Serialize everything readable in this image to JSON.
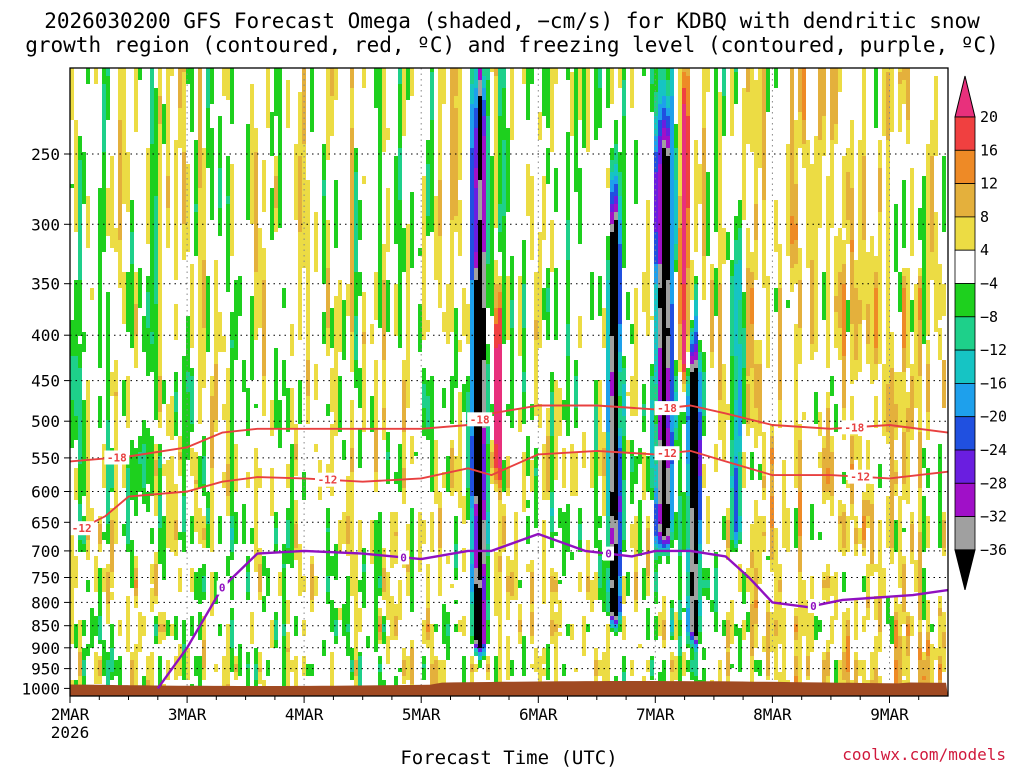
{
  "header": {
    "title_line1": "2026030200 GFS Forecast Omega (shaded, −cm/s) for KDBQ with dendritic snow",
    "title_line2": "growth region (contoured, red, ºC) and freezing level (contoured, purple, ºC)"
  },
  "credit": "coolwx.com/models",
  "chart_data": {
    "type": "heatmap",
    "title": "2026030200 GFS Forecast Omega (shaded, −cm/s) for KDBQ with dendritic snow growth region (contoured, red, ºC) and freezing level (contoured, purple, ºC)",
    "xlabel": "Forecast Time (UTC)",
    "ylabel": "",
    "x_ticks": [
      "2MAR",
      "3MAR",
      "4MAR",
      "5MAR",
      "6MAR",
      "7MAR",
      "8MAR",
      "9MAR"
    ],
    "x_tick_day": [
      0,
      1,
      2,
      3,
      4,
      5,
      6,
      7
    ],
    "x_year_label": "2026",
    "xlim_days": [
      0,
      7.5
    ],
    "y_ticks": [
      250,
      300,
      350,
      400,
      450,
      500,
      550,
      600,
      650,
      700,
      750,
      800,
      850,
      900,
      950,
      1000
    ],
    "ylim_hpa": [
      200,
      1020
    ],
    "y_scale": "log-pressure",
    "ground_pressure_hpa": 990,
    "colorbar": {
      "labels": [
        "20",
        "16",
        "12",
        "8",
        "4",
        "−4",
        "−8",
        "−12",
        "−16",
        "−20",
        "−24",
        "−28",
        "−32",
        "−36"
      ],
      "colors": [
        "#e8307c",
        "#f04040",
        "#ee8a26",
        "#e4b03c",
        "#ecdc44",
        "#ffffff",
        "#1ed01e",
        "#1ed08a",
        "#16c4c4",
        "#1ea0ec",
        "#2050e0",
        "#6a1ee0",
        "#a010c8",
        "#a0a0a0",
        "#000000"
      ]
    },
    "omega_features": [
      {
        "day": 3.5,
        "p_top": 250,
        "p_bot": 870,
        "peak": -36,
        "width": 0.06
      },
      {
        "day": 4.65,
        "p_top": 330,
        "p_bot": 810,
        "peak": -36,
        "width": 0.05
      },
      {
        "day": 5.08,
        "p_top": 270,
        "p_bot": 660,
        "peak": -36,
        "width": 0.07
      },
      {
        "day": 5.33,
        "p_top": 460,
        "p_bot": 850,
        "peak": -36,
        "width": 0.05
      },
      {
        "day": 5.7,
        "p_top": 350,
        "p_bot": 650,
        "peak": -16,
        "width": 0.05
      },
      {
        "day": 3.65,
        "p_top": 400,
        "p_bot": 560,
        "peak": 20,
        "width": 0.04
      },
      {
        "day": 5.25,
        "p_top": 250,
        "p_bot": 420,
        "peak": 20,
        "width": 0.04
      }
    ],
    "contours": [
      {
        "name": "-18",
        "label": "-18",
        "color": "#e84040",
        "days": [
          0,
          0.5,
          1.0,
          1.3,
          1.6,
          2.0,
          2.5,
          3.0,
          3.4,
          3.6,
          4.0,
          4.5,
          5.0,
          5.3,
          5.6,
          6.0,
          6.5,
          7.0,
          7.5
        ],
        "p": [
          555,
          548,
          535,
          515,
          510,
          510,
          510,
          510,
          505,
          490,
          480,
          480,
          485,
          480,
          490,
          505,
          510,
          505,
          515
        ],
        "label_days": [
          0.4,
          3.5,
          5.1,
          6.7
        ]
      },
      {
        "name": "-12",
        "label": "-12",
        "color": "#e84040",
        "days": [
          0,
          0.3,
          0.5,
          1.0,
          1.3,
          1.6,
          2.0,
          2.5,
          3.0,
          3.4,
          3.6,
          4.0,
          4.5,
          5.0,
          5.3,
          5.6,
          6.0,
          6.5,
          7.0,
          7.5
        ],
        "p": [
          670,
          640,
          608,
          600,
          585,
          578,
          580,
          585,
          580,
          565,
          575,
          545,
          540,
          545,
          540,
          555,
          575,
          575,
          580,
          570
        ],
        "label_days": [
          0.1,
          2.2,
          5.1,
          6.75
        ]
      },
      {
        "name": "0",
        "label": "0",
        "color": "#9010c0",
        "days": [
          0.75,
          1.0,
          1.3,
          1.6,
          2.0,
          2.5,
          3.0,
          3.4,
          3.6,
          4.0,
          4.4,
          4.8,
          5.0,
          5.3,
          5.6,
          5.8,
          6.0,
          6.3,
          6.6,
          6.9,
          7.2,
          7.5
        ],
        "p": [
          1000,
          900,
          770,
          705,
          700,
          705,
          715,
          700,
          700,
          670,
          700,
          710,
          700,
          700,
          710,
          750,
          800,
          810,
          795,
          790,
          785,
          775
        ],
        "label_days": [
          1.3,
          2.85,
          4.6,
          6.35
        ]
      }
    ]
  }
}
